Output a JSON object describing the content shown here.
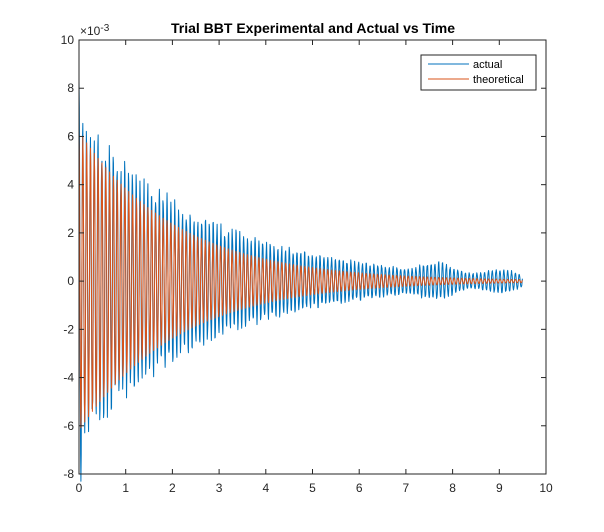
{
  "chart_data": {
    "type": "line",
    "title": "Trial BBT Experimental and Actual vs Time",
    "xlabel": "",
    "ylabel": "",
    "y_exponent_label": "×10",
    "y_exponent_power": "-3",
    "xlim": [
      0,
      10
    ],
    "ylim": [
      -8,
      10
    ],
    "x_ticks": [
      0,
      1,
      2,
      3,
      4,
      5,
      6,
      7,
      8,
      9,
      10
    ],
    "y_ticks": [
      -8,
      -6,
      -4,
      -2,
      0,
      2,
      4,
      6,
      8,
      10
    ],
    "x_tick_labels": [
      "0",
      "1",
      "2",
      "3",
      "4",
      "5",
      "6",
      "7",
      "8",
      "9",
      "10"
    ],
    "y_tick_labels": [
      "-8",
      "-6",
      "-4",
      "-2",
      "0",
      "2",
      "4",
      "6",
      "8",
      "10"
    ],
    "grid": false,
    "legend_position": "top-right",
    "series": [
      {
        "name": "actual",
        "color": "#0072BD",
        "model": "damped oscillation with late noise",
        "amplitude_start": 0.0065,
        "amplitude_floor": 0.0006,
        "peak_value": 0.0083,
        "frequency_hz": 12.2,
        "x_start": 0,
        "x_end": 9.5
      },
      {
        "name": "theoretical",
        "color": "#D95319",
        "model": "exponentially damped cosine",
        "amplitude_start": 0.0062,
        "decay_rate": 0.48,
        "frequency_hz": 12.2,
        "x_start": 0,
        "x_end": 9.5
      }
    ]
  }
}
